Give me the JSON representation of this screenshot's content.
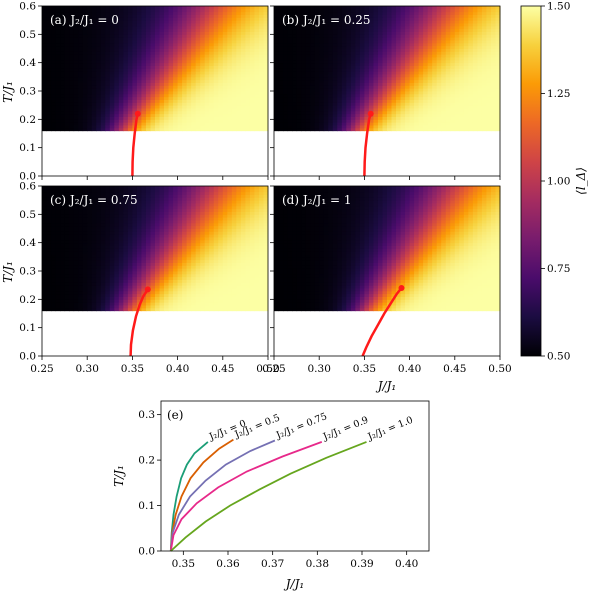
{
  "heatmap_panels": {
    "x_ticks": [
      "0.25",
      "0.30",
      "0.35",
      "0.40",
      "0.45",
      "0.50"
    ],
    "y_ticks": [
      "0.0",
      "0.1",
      "0.2",
      "0.3",
      "0.4",
      "0.5",
      "0.6"
    ],
    "xlabel": "J/J₁",
    "ylabel": "T/J₁"
  },
  "colorbar": {
    "label": "⟨l_Δ⟩",
    "ticks": [
      "0.50",
      "0.75",
      "1.00",
      "1.25",
      "1.50"
    ],
    "colors": [
      "#000004",
      "#1b0c41",
      "#4a0c6b",
      "#781c6d",
      "#a52c60",
      "#cf4446",
      "#ed6925",
      "#fb9b06",
      "#f7d13d",
      "#fcffa4"
    ]
  },
  "curves_panel": {
    "label": "(e)",
    "x_ticks": [
      "0.35",
      "0.36",
      "0.37",
      "0.38",
      "0.39",
      "0.40"
    ],
    "y_ticks": [
      "0.0",
      "0.1",
      "0.2",
      "0.3"
    ],
    "xlabel": "J/J₁",
    "ylabel": "T/J₁"
  },
  "chart_data": [
    {
      "type": "heatmap",
      "panel": "(a) J₂/J₁ = 0",
      "xlim": [
        0.25,
        0.5
      ],
      "ylim": [
        0,
        0.6
      ],
      "color_range": [
        0.5,
        1.5
      ],
      "data_region_min_T": 0.16,
      "boundary_curve": {
        "x": [
          0.35,
          0.3502,
          0.351,
          0.3525,
          0.3545,
          0.356
        ],
        "y": [
          0.0,
          0.05,
          0.1,
          0.15,
          0.2,
          0.22
        ]
      },
      "endpoint": {
        "x": 0.356,
        "y": 0.22
      }
    },
    {
      "type": "heatmap",
      "panel": "(b) J₂/J₁ = 0.25",
      "xlim": [
        0.25,
        0.5
      ],
      "ylim": [
        0,
        0.6
      ],
      "color_range": [
        0.5,
        1.5
      ],
      "data_region_min_T": 0.16,
      "boundary_curve": {
        "x": [
          0.35,
          0.3503,
          0.3512,
          0.353,
          0.3552,
          0.357
        ],
        "y": [
          0.0,
          0.05,
          0.1,
          0.15,
          0.2,
          0.22
        ]
      },
      "endpoint": {
        "x": 0.357,
        "y": 0.22
      }
    },
    {
      "type": "heatmap",
      "panel": "(c) J₂/J₁ = 0.75",
      "xlim": [
        0.25,
        0.5
      ],
      "ylim": [
        0,
        0.6
      ],
      "color_range": [
        0.5,
        1.5
      ],
      "data_region_min_T": 0.16,
      "boundary_curve": {
        "x": [
          0.348,
          0.3485,
          0.3505,
          0.354,
          0.358,
          0.362,
          0.367
        ],
        "y": [
          0.0,
          0.04,
          0.09,
          0.14,
          0.18,
          0.21,
          0.235
        ]
      },
      "endpoint": {
        "x": 0.367,
        "y": 0.235
      }
    },
    {
      "type": "heatmap",
      "panel": "(d) J₂/J₁ = 1",
      "xlim": [
        0.25,
        0.5
      ],
      "ylim": [
        0,
        0.6
      ],
      "color_range": [
        0.5,
        1.5
      ],
      "data_region_min_T": 0.16,
      "boundary_curve": {
        "x": [
          0.348,
          0.352,
          0.358,
          0.365,
          0.372,
          0.38,
          0.386,
          0.391
        ],
        "y": [
          0.0,
          0.03,
          0.07,
          0.11,
          0.15,
          0.19,
          0.22,
          0.24
        ]
      },
      "endpoint": {
        "x": 0.391,
        "y": 0.24
      }
    },
    {
      "type": "line",
      "panel": "(e)",
      "xlim": [
        0.345,
        0.405
      ],
      "ylim": [
        0,
        0.33
      ],
      "series": [
        {
          "name": "J₂/J₁ = 0",
          "color": "#1b9e77",
          "x": [
            0.3472,
            0.3474,
            0.3478,
            0.3485,
            0.3495,
            0.3508,
            0.3525,
            0.3555
          ],
          "y": [
            0.0,
            0.04,
            0.08,
            0.12,
            0.16,
            0.19,
            0.215,
            0.24
          ]
        },
        {
          "name": "J₂/J₁ = 0.5",
          "color": "#d95f02",
          "x": [
            0.3472,
            0.3475,
            0.3483,
            0.3496,
            0.3516,
            0.3545,
            0.358,
            0.3612
          ],
          "y": [
            0.0,
            0.04,
            0.08,
            0.12,
            0.16,
            0.195,
            0.225,
            0.245
          ]
        },
        {
          "name": "J₂/J₁ = 0.75",
          "color": "#7570b3",
          "x": [
            0.3472,
            0.3476,
            0.349,
            0.3515,
            0.355,
            0.3595,
            0.365,
            0.3705
          ],
          "y": [
            0.0,
            0.04,
            0.08,
            0.12,
            0.155,
            0.19,
            0.22,
            0.243
          ]
        },
        {
          "name": "J₂/J₁ = 0.9",
          "color": "#e7298a",
          "x": [
            0.3472,
            0.3478,
            0.3496,
            0.353,
            0.3578,
            0.3642,
            0.3722,
            0.381
          ],
          "y": [
            0.0,
            0.035,
            0.07,
            0.105,
            0.14,
            0.175,
            0.208,
            0.24
          ]
        },
        {
          "name": "J₂/J₁ = 1.0",
          "color": "#66a61e",
          "x": [
            0.3472,
            0.3505,
            0.355,
            0.3605,
            0.367,
            0.374,
            0.382,
            0.391
          ],
          "y": [
            0.0,
            0.03,
            0.065,
            0.1,
            0.135,
            0.17,
            0.205,
            0.24
          ]
        }
      ]
    }
  ]
}
